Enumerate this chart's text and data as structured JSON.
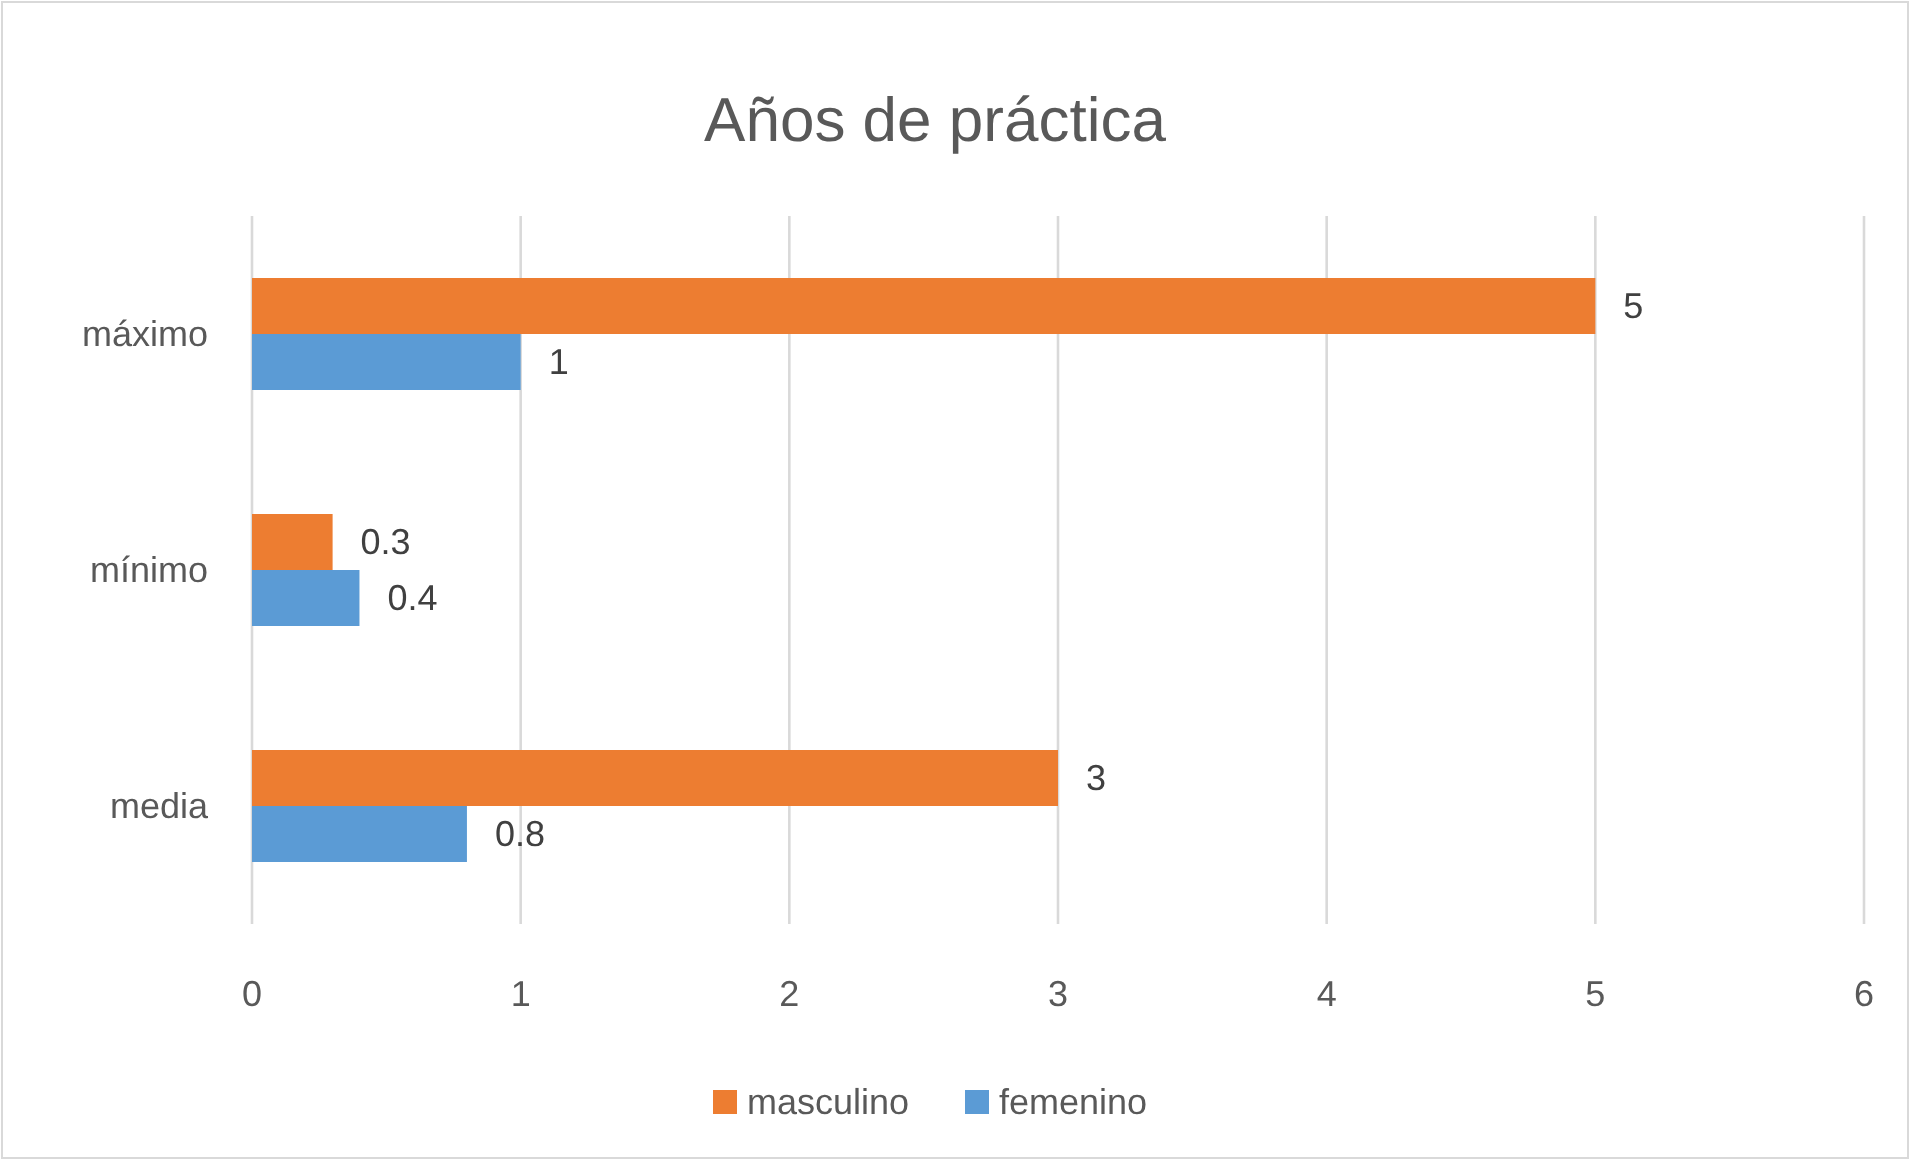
{
  "chart_data": {
    "type": "bar",
    "orientation": "horizontal",
    "title": "Años de práctica",
    "categories": [
      "máximo",
      "mínimo",
      "media"
    ],
    "series": [
      {
        "name": "masculino",
        "color": "#ed7d31",
        "values": [
          5,
          0.3,
          3
        ]
      },
      {
        "name": "femenino",
        "color": "#5b9bd5",
        "values": [
          1,
          0.4,
          0.8
        ]
      }
    ],
    "xlim": [
      0,
      6
    ],
    "xticks": [
      0,
      1,
      2,
      3,
      4,
      5,
      6
    ],
    "grid": "x",
    "legend": "bottom",
    "data_labels": true
  }
}
